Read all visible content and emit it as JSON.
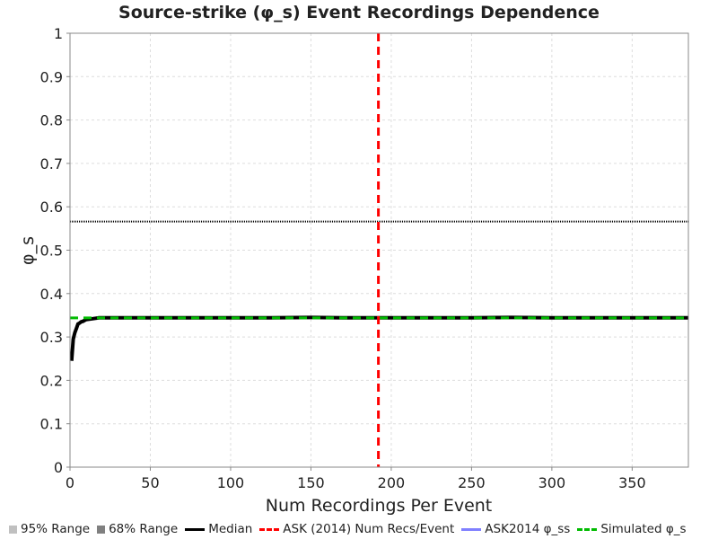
{
  "chart_data": {
    "type": "line",
    "title": "Source-strike (φ_s) Event Recordings Dependence",
    "xlabel": "Num Recordings Per Event",
    "ylabel": "φ_s",
    "xlim": [
      0,
      385
    ],
    "ylim": [
      0,
      1
    ],
    "xticks": [
      "0",
      "50",
      "100",
      "150",
      "200",
      "250",
      "300",
      "350"
    ],
    "xtick_values": [
      0,
      50,
      100,
      150,
      200,
      250,
      300,
      350
    ],
    "yticks": [
      "0",
      "0.1",
      "0.2",
      "0.3",
      "0.4",
      "0.5",
      "0.6",
      "0.7",
      "0.8",
      "0.9",
      "1"
    ],
    "ytick_values": [
      0,
      0.1,
      0.2,
      0.3,
      0.4,
      0.5,
      0.6,
      0.7,
      0.8,
      0.9,
      1
    ],
    "grid": true,
    "legend_position": "bottom",
    "series": [
      {
        "name": "Median",
        "color": "#000000",
        "style": "solid",
        "x": [
          1,
          2,
          3,
          4,
          5,
          6,
          7,
          8,
          9,
          10,
          12,
          14,
          16,
          18,
          20,
          25,
          30,
          40,
          50,
          75,
          100,
          125,
          150,
          175,
          200,
          225,
          250,
          275,
          300,
          325,
          350,
          385
        ],
        "y": [
          0.245,
          0.295,
          0.31,
          0.32,
          0.33,
          0.332,
          0.335,
          0.336,
          0.338,
          0.34,
          0.341,
          0.342,
          0.343,
          0.344,
          0.344,
          0.344,
          0.344,
          0.344,
          0.344,
          0.344,
          0.344,
          0.344,
          0.345,
          0.344,
          0.344,
          0.344,
          0.344,
          0.345,
          0.344,
          0.344,
          0.344,
          0.344
        ]
      },
      {
        "name": "ASK (2014) Num Recs/Event",
        "color": "#ff0000",
        "style": "dashed",
        "vertical_x": 192
      },
      {
        "name": "ASK2014 φ_ss",
        "color": "#8080ff",
        "style": "solid"
      },
      {
        "name": "Simulated φ_s",
        "color": "#00bb00",
        "style": "dashed",
        "horizontal_y": 0.344
      }
    ],
    "reference_line": {
      "y": 0.566,
      "color": "#000000",
      "style": "dotted"
    },
    "legend": [
      {
        "label": "95% Range",
        "kind": "square",
        "color": "#c0c0c0"
      },
      {
        "label": "68% Range",
        "kind": "square",
        "color": "#808080"
      },
      {
        "label": "Median",
        "kind": "line",
        "color": "#000000",
        "style": "solid"
      },
      {
        "label": "ASK (2014) Num Recs/Event",
        "kind": "line",
        "color": "#ff0000",
        "style": "dashed"
      },
      {
        "label": "ASK2014 φ_ss",
        "kind": "line",
        "color": "#8080ff",
        "style": "solid"
      },
      {
        "label": "Simulated φ_s",
        "kind": "line",
        "color": "#00bb00",
        "style": "dashed"
      }
    ]
  }
}
